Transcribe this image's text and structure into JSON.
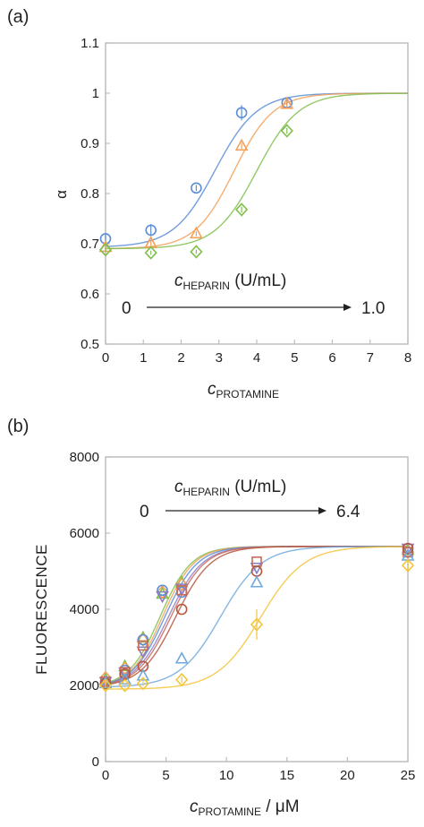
{
  "chart_data": [
    {
      "panel_label": "(a)",
      "type": "scatter",
      "fit": "sigmoid",
      "xlabel_main": "c",
      "xlabel_sub": "PROTAMINE",
      "ylabel": "α",
      "xlim": [
        0,
        8
      ],
      "ylim": [
        0.5,
        1.1
      ],
      "x_ticks": [
        "0",
        "1",
        "2",
        "3",
        "4",
        "5",
        "6",
        "7",
        "8"
      ],
      "y_ticks": [
        "0.5",
        "0.6",
        "0.7",
        "0.8",
        "0.9",
        "1",
        "1.1"
      ],
      "annotation": {
        "main": "c",
        "sub": "HEPARIN",
        "unit": " (U/mL)",
        "from": "0",
        "to": "1.0"
      },
      "series": [
        {
          "color": "#5b8dd6",
          "marker": "circle",
          "x": [
            0,
            1.2,
            2.4,
            3.6,
            4.8
          ],
          "y": [
            0.71,
            0.727,
            0.811,
            0.961,
            0.981
          ],
          "err": [
            0.008,
            0.012,
            0.006,
            0.015,
            0.006
          ],
          "fit": {
            "a": 0.693,
            "b": 1.0,
            "x0": 2.9,
            "k": 0.55
          }
        },
        {
          "color": "#f2a05a",
          "marker": "triangle",
          "x": [
            0,
            1.2,
            2.4,
            3.6,
            4.8
          ],
          "y": [
            0.693,
            0.701,
            0.72,
            0.895,
            0.978
          ],
          "err": [
            0.004,
            0.005,
            0.005,
            0.006,
            0.006
          ],
          "fit": {
            "a": 0.69,
            "b": 1.0,
            "x0": 3.4,
            "k": 0.52
          }
        },
        {
          "color": "#7fbf4b",
          "marker": "diamond",
          "x": [
            0,
            1.2,
            2.4,
            3.6,
            4.8
          ],
          "y": [
            0.688,
            0.682,
            0.684,
            0.768,
            0.925
          ],
          "err": [
            0.004,
            0.004,
            0.004,
            0.006,
            0.006
          ],
          "fit": {
            "a": 0.69,
            "b": 1.0,
            "x0": 4.0,
            "k": 0.55
          }
        }
      ]
    },
    {
      "panel_label": "(b)",
      "type": "scatter",
      "fit": "sigmoid",
      "xlabel_main": "c",
      "xlabel_sub": "PROTAMINE",
      "xlabel_unit": " / μM",
      "ylabel": "FLUORESCENCE",
      "xlim": [
        0,
        25
      ],
      "ylim": [
        0,
        8000
      ],
      "x_ticks": [
        "0",
        "5",
        "10",
        "15",
        "20",
        "25"
      ],
      "y_ticks": [
        "0",
        "2000",
        "4000",
        "6000",
        "8000"
      ],
      "annotation": {
        "main": "c",
        "sub": "HEPARIN",
        "unit": " (U/mL)",
        "from": "0",
        "to": "6.4"
      },
      "series": [
        {
          "color": "#7fbf4b",
          "marker": "triangle",
          "x": [
            0,
            1.6,
            3.1,
            4.7,
            6.3,
            25
          ],
          "y": [
            2150,
            2500,
            3250,
            4400,
            4700,
            5550
          ],
          "fit": {
            "a": 1950,
            "b": 5650,
            "x0": 4.5,
            "k": 1.3
          }
        },
        {
          "color": "#f2a05a",
          "marker": "diamond",
          "x": [
            0,
            1.6,
            3.1,
            4.7,
            6.3,
            25
          ],
          "y": [
            2200,
            2450,
            3200,
            4450,
            4650,
            5500
          ],
          "fit": {
            "a": 1950,
            "b": 5650,
            "x0": 4.7,
            "k": 1.3
          }
        },
        {
          "color": "#5b8dd6",
          "marker": "circle",
          "x": [
            0,
            1.6,
            3.1,
            4.7,
            6.3,
            25
          ],
          "y": [
            2100,
            2400,
            3200,
            4500,
            4450,
            5500
          ],
          "fit": {
            "a": 1950,
            "b": 5650,
            "x0": 4.9,
            "k": 1.35
          }
        },
        {
          "color": "#8e7cc3",
          "marker": "triangle-down",
          "x": [
            0,
            1.6,
            3.1,
            4.7,
            6.3,
            12.5,
            25
          ],
          "y": [
            2100,
            2350,
            2900,
            4350,
            4550,
            5100,
            5600
          ],
          "fit": {
            "a": 1950,
            "b": 5650,
            "x0": 5.2,
            "k": 1.4
          }
        },
        {
          "color": "#c96b5a",
          "marker": "square",
          "x": [
            0,
            1.6,
            3.1,
            6.3,
            12.5,
            25
          ],
          "y": [
            2100,
            2350,
            3050,
            4500,
            5250,
            5500
          ],
          "fit": {
            "a": 1950,
            "b": 5650,
            "x0": 5.4,
            "k": 1.4
          }
        },
        {
          "color": "#b5563e",
          "marker": "circle",
          "x": [
            0,
            1.6,
            3.1,
            6.3,
            12.5,
            25
          ],
          "y": [
            2050,
            2300,
            2500,
            4000,
            5000,
            5600
          ],
          "fit": {
            "a": 1950,
            "b": 5650,
            "x0": 5.8,
            "k": 1.45
          }
        },
        {
          "color": "#6fa8dc",
          "marker": "triangle",
          "x": [
            0,
            1.6,
            3.1,
            6.3,
            12.5,
            25
          ],
          "y": [
            2050,
            2150,
            2250,
            2700,
            4700,
            5400
          ],
          "fit": {
            "a": 1950,
            "b": 5650,
            "x0": 9.5,
            "k": 1.7
          }
        },
        {
          "color": "#f3c43a",
          "marker": "diamond",
          "x": [
            0,
            1.6,
            3.1,
            6.3,
            12.5,
            25
          ],
          "y": [
            2000,
            2000,
            2050,
            2150,
            3600,
            5150
          ],
          "err": [
            60,
            60,
            60,
            80,
            400,
            150
          ],
          "fit": {
            "a": 1900,
            "b": 5650,
            "x0": 12.8,
            "k": 1.8
          }
        }
      ]
    }
  ]
}
